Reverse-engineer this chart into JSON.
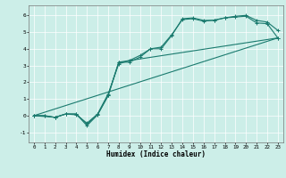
{
  "title": "",
  "xlabel": "Humidex (Indice chaleur)",
  "bg_color": "#cceee8",
  "grid_color": "#ffffff",
  "line_color": "#1a7a6e",
  "xlim": [
    -0.5,
    23.5
  ],
  "ylim": [
    -1.6,
    6.6
  ],
  "xticks": [
    0,
    1,
    2,
    3,
    4,
    5,
    6,
    7,
    8,
    9,
    10,
    11,
    12,
    13,
    14,
    15,
    16,
    17,
    18,
    19,
    20,
    21,
    22,
    23
  ],
  "yticks": [
    -1,
    0,
    1,
    2,
    3,
    4,
    5,
    6
  ],
  "line1_x": [
    0,
    1,
    2,
    3,
    4,
    5,
    6,
    7,
    8,
    9,
    10,
    11,
    12,
    13,
    14,
    15,
    16,
    17,
    18,
    19,
    20,
    21,
    22,
    23
  ],
  "line1_y": [
    0,
    0,
    -0.1,
    0.1,
    0.1,
    -0.6,
    0.05,
    1.2,
    3.2,
    3.2,
    3.5,
    4.0,
    4.0,
    4.8,
    5.8,
    5.85,
    5.7,
    5.7,
    5.85,
    5.95,
    6.0,
    5.7,
    5.6,
    5.1
  ],
  "line2_x": [
    0,
    1,
    2,
    3,
    4,
    5,
    6,
    7,
    8,
    9,
    10,
    11,
    12,
    13,
    14,
    15,
    16,
    17,
    18,
    19,
    20,
    21,
    22,
    23
  ],
  "line2_y": [
    0,
    0,
    -0.1,
    0.1,
    0.05,
    -0.45,
    0.1,
    1.3,
    3.1,
    3.3,
    3.6,
    4.0,
    4.1,
    4.85,
    5.75,
    5.8,
    5.65,
    5.72,
    5.85,
    5.9,
    5.95,
    5.55,
    5.5,
    4.65
  ],
  "line3_x": [
    0,
    2,
    3,
    4,
    5,
    6,
    7,
    8,
    23
  ],
  "line3_y": [
    0,
    -0.1,
    0.1,
    0.1,
    -0.5,
    0.05,
    1.2,
    3.2,
    4.65
  ],
  "line4_x": [
    0,
    23
  ],
  "line4_y": [
    0,
    4.65
  ]
}
